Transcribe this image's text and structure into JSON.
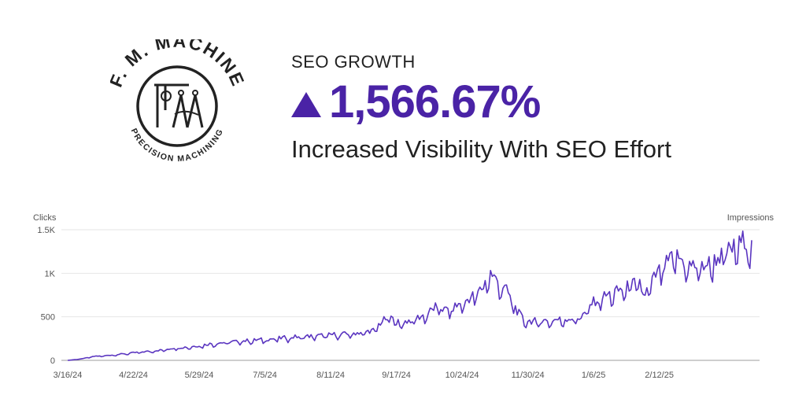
{
  "logo": {
    "top_text": "F. M. MACHINE",
    "bottom_text": "PRECISION MACHINING"
  },
  "header": {
    "eyebrow": "SEO GROWTH",
    "metric": "1,566.67%",
    "subtitle": "Increased Visibility With SEO Effort"
  },
  "colors": {
    "accent": "#4a23a6",
    "series": "#5a35c0"
  },
  "chart_data": {
    "type": "line",
    "title": "",
    "ylabel_left": "Clicks",
    "ylabel_right": "Impressions",
    "ylim": [
      0,
      1500
    ],
    "yticks": [
      0,
      500,
      1000,
      1500
    ],
    "ytick_labels": [
      "0",
      "500",
      "1K",
      "1.5K"
    ],
    "xtick_labels": [
      "3/16/24",
      "4/22/24",
      "5/29/24",
      "7/5/24",
      "8/11/24",
      "9/17/24",
      "10/24/24",
      "11/30/24",
      "1/6/25",
      "2/12/25"
    ],
    "anchors": [
      [
        0,
        0
      ],
      [
        5,
        10
      ],
      [
        10,
        25
      ],
      [
        15,
        45
      ],
      [
        20,
        50
      ],
      [
        25,
        60
      ],
      [
        30,
        70
      ],
      [
        37,
        85
      ],
      [
        45,
        100
      ],
      [
        55,
        120
      ],
      [
        60,
        140
      ],
      [
        68,
        150
      ],
      [
        74,
        165
      ],
      [
        80,
        185
      ],
      [
        88,
        200
      ],
      [
        96,
        215
      ],
      [
        104,
        225
      ],
      [
        111,
        235
      ],
      [
        118,
        245
      ],
      [
        125,
        260
      ],
      [
        135,
        270
      ],
      [
        144,
        280
      ],
      [
        150,
        290
      ],
      [
        157,
        295
      ],
      [
        164,
        310
      ],
      [
        172,
        335
      ],
      [
        175,
        400
      ],
      [
        178,
        450
      ],
      [
        181,
        500
      ],
      [
        184,
        430
      ],
      [
        188,
        420
      ],
      [
        192,
        445
      ],
      [
        196,
        470
      ],
      [
        200,
        500
      ],
      [
        205,
        560
      ],
      [
        208,
        620
      ],
      [
        212,
        560
      ],
      [
        216,
        580
      ],
      [
        220,
        620
      ],
      [
        225,
        680
      ],
      [
        230,
        750
      ],
      [
        234,
        820
      ],
      [
        236,
        930
      ],
      [
        238,
        980
      ],
      [
        241,
        900
      ],
      [
        244,
        850
      ],
      [
        247,
        780
      ],
      [
        250,
        680
      ],
      [
        253,
        550
      ],
      [
        256,
        470
      ],
      [
        260,
        440
      ],
      [
        266,
        440
      ],
      [
        272,
        450
      ],
      [
        278,
        460
      ],
      [
        284,
        470
      ],
      [
        289,
        480
      ],
      [
        292,
        560
      ],
      [
        295,
        640
      ],
      [
        300,
        700
      ],
      [
        305,
        740
      ],
      [
        310,
        780
      ],
      [
        314,
        810
      ],
      [
        318,
        850
      ],
      [
        322,
        860
      ],
      [
        324,
        720
      ],
      [
        327,
        810
      ],
      [
        330,
        920
      ],
      [
        333,
        1000
      ],
      [
        336,
        1060
      ],
      [
        339,
        1120
      ],
      [
        342,
        1180
      ],
      [
        345,
        1130
      ],
      [
        348,
        1080
      ],
      [
        352,
        1060
      ],
      [
        356,
        1050
      ],
      [
        360,
        1080
      ],
      [
        364,
        1120
      ],
      [
        368,
        1170
      ],
      [
        372,
        1230
      ],
      [
        375,
        1260
      ],
      [
        378,
        1300
      ],
      [
        381,
        1360
      ],
      [
        383,
        1330
      ],
      [
        385,
        1270
      ]
    ],
    "points_per_tick": 37,
    "first_tick_index": 0
  }
}
